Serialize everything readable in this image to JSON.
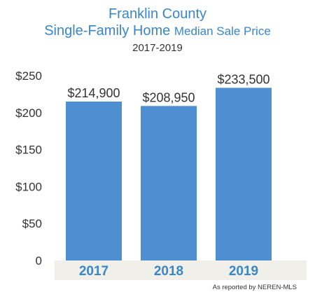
{
  "header": {
    "title_line1": "Franklin County",
    "title_line2_main": "Single-Family Home",
    "title_line2_rest": "Median Sale Price",
    "subtitle": "2017-2019"
  },
  "footnote": "As reported by NEREN-MLS",
  "colors": {
    "bar": "#4d8fd0",
    "axis_band": "#f1efe9",
    "title": "#3a86c8",
    "category_text": "#3a86c8"
  },
  "chart_data": {
    "type": "bar",
    "title": "Franklin County Single-Family Home Median Sale Price",
    "subtitle": "2017-2019",
    "categories": [
      "2017",
      "2018",
      "2019"
    ],
    "values": [
      214900,
      208950,
      233500
    ],
    "data_labels": [
      "$214,900",
      "$208,950",
      "$233,500"
    ],
    "yticks": [
      0,
      50000,
      100000,
      150000,
      200000,
      250000
    ],
    "ytick_labels": [
      "0",
      "$50",
      "$100",
      "$150",
      "$200",
      "$250"
    ],
    "ylim": [
      0,
      250000
    ],
    "xlabel": "",
    "ylabel": "",
    "grid": false,
    "legend": "none"
  }
}
